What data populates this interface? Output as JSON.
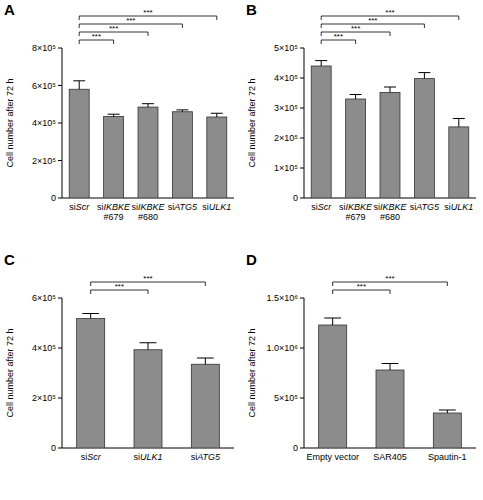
{
  "chart_data": [
    {
      "type": "bar",
      "title": "A",
      "y_label": "Cell number after 72 h",
      "categories": [
        "siScr",
        "siIKBKE\n#679",
        "siIKBKE\n#680",
        "siATG5",
        "siULK1"
      ],
      "values": [
        580000,
        435000,
        485000,
        460000,
        432000
      ],
      "error": [
        45000,
        12000,
        18000,
        10000,
        20000
      ],
      "color": "#8c8c8c",
      "grid": false,
      "ylim": [
        0,
        800000
      ],
      "yticks": [
        0,
        {
          "value": 200000,
          "label": "2×10⁵"
        },
        {
          "value": 400000,
          "label": "4×10⁵"
        },
        {
          "value": 600000,
          "label": "6×10⁵"
        },
        {
          "value": 800000,
          "label": "8×10⁵"
        }
      ],
      "annotations": [
        {
          "text": "***",
          "between": [
            "siScr",
            "siIKBKE\n#679"
          ]
        },
        {
          "text": "***",
          "between": [
            "siScr",
            "siIKBKE\n#680"
          ]
        },
        {
          "text": "***",
          "between": [
            "siScr",
            "siATG5"
          ]
        },
        {
          "text": "***",
          "between": [
            "siScr",
            "siULK1"
          ]
        }
      ]
    },
    {
      "type": "bar",
      "title": "B",
      "y_label": "Cell number after 72 h",
      "categories": [
        "siScr",
        "siIKBKE\n#679",
        "siIKBKE\n#680",
        "siATG5",
        "siULK1"
      ],
      "values": [
        440000,
        330000,
        352000,
        398000,
        237000
      ],
      "error": [
        18000,
        15000,
        18000,
        20000,
        28000
      ],
      "color": "#8c8c8c",
      "grid": false,
      "ylim": [
        0,
        500000
      ],
      "yticks": [
        0,
        {
          "value": 100000,
          "label": "1×10⁵"
        },
        {
          "value": 200000,
          "label": "2×10⁵"
        },
        {
          "value": 300000,
          "label": "3×10⁵"
        },
        {
          "value": 400000,
          "label": "4×10⁵"
        },
        {
          "value": 500000,
          "label": "5×10⁵"
        }
      ],
      "annotations": [
        {
          "text": "***",
          "between": [
            "siScr",
            "siIKBKE\n#679"
          ]
        },
        {
          "text": "***",
          "between": [
            "siScr",
            "siIKBKE\n#680"
          ]
        },
        {
          "text": "***",
          "between": [
            "siScr",
            "siATG5"
          ]
        },
        {
          "text": "***",
          "between": [
            "siScr",
            "siULK1"
          ]
        }
      ]
    },
    {
      "type": "bar",
      "title": "C",
      "y_label": "Cell number after 72 h",
      "categories": [
        "siScr",
        "siULK1",
        "siATG5"
      ],
      "values": [
        518000,
        393000,
        335000
      ],
      "error": [
        20000,
        28000,
        25000
      ],
      "color": "#8c8c8c",
      "grid": false,
      "ylim": [
        0,
        600000
      ],
      "yticks": [
        0,
        {
          "value": 200000,
          "label": "2×10⁵"
        },
        {
          "value": 400000,
          "label": "4×10⁵"
        },
        {
          "value": 600000,
          "label": "6×10⁵"
        }
      ],
      "annotations": [
        {
          "text": "***",
          "between": [
            "siScr",
            "siULK1"
          ]
        },
        {
          "text": "***",
          "between": [
            "siScr",
            "siATG5"
          ]
        }
      ]
    },
    {
      "type": "bar",
      "title": "D",
      "y_label": "Cell number after 72 h",
      "categories": [
        "Empty vector",
        "SAR405",
        "Spautin-1"
      ],
      "values": [
        1230000,
        780000,
        350000
      ],
      "error": [
        70000,
        65000,
        30000
      ],
      "color": "#8c8c8c",
      "grid": false,
      "ylim": [
        0,
        1500000
      ],
      "yticks": [
        0,
        {
          "value": 500000,
          "label": "5×10⁵"
        },
        {
          "value": 1000000,
          "label": "1.0×10⁶"
        },
        {
          "value": 1500000,
          "label": "1.5×10⁶"
        }
      ],
      "annotations": [
        {
          "text": "***",
          "between": [
            "Empty vector",
            "SAR405"
          ]
        },
        {
          "text": "***",
          "between": [
            "Empty vector",
            "Spautin-1"
          ]
        }
      ]
    }
  ]
}
